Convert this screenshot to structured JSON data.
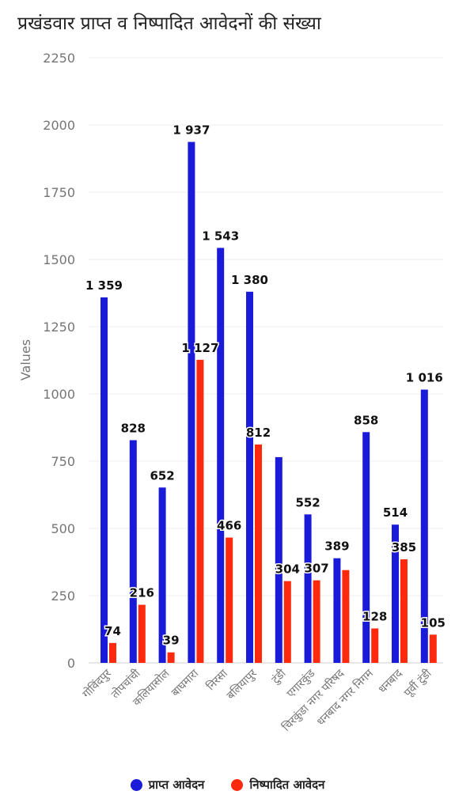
{
  "chart_data": {
    "type": "bar",
    "title": "प्रखंडवार प्राप्त व निष्पादित आवेदनों की संख्या",
    "ylabel": "Values",
    "xlabel": "",
    "ylim": [
      0,
      2250
    ],
    "yticks": [
      0,
      250,
      500,
      750,
      1000,
      1250,
      1500,
      1750,
      2000,
      2250
    ],
    "grid": true,
    "legend_position": "bottom",
    "categories": [
      "गोविंदपुर",
      "तोपचांची",
      "कलियासोल",
      "बाघमारा",
      "निरसा",
      "बलियापुर",
      "टुंडी",
      "एगारकुंड",
      "चिरकुंडा नगर परिषद",
      "धनबाद नगर निगम",
      "धनबाद",
      "पूर्वी टुंडी"
    ],
    "series": [
      {
        "name": "प्राप्त आवेदन",
        "color": "#1a1ad9",
        "values": [
          1359,
          828,
          652,
          1937,
          1543,
          1380,
          765,
          552,
          389,
          858,
          514,
          1016
        ],
        "labels": [
          "1 359",
          "828",
          "652",
          "1 937",
          "1 543",
          "1 380",
          "",
          "552",
          "389",
          "858",
          "514",
          "1 016"
        ]
      },
      {
        "name": "निष्पादित आवेदन",
        "color": "#ff2a0d",
        "values": [
          74,
          216,
          39,
          1127,
          466,
          812,
          304,
          307,
          345,
          128,
          385,
          105
        ],
        "labels": [
          "74",
          "216",
          "39",
          "1 127",
          "466",
          "812",
          "304",
          "307",
          "",
          "128",
          "385",
          "105"
        ]
      }
    ]
  }
}
